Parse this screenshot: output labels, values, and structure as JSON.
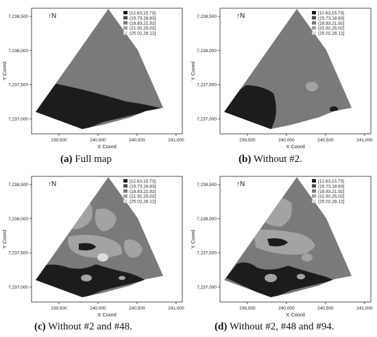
{
  "chart_data": [
    {
      "type": "heatmap",
      "panel": "a",
      "caption_letter": "(a)",
      "caption_text": "Full map",
      "north_label": "↑N",
      "xlabel": "X Coord",
      "ylabel": "Y Coord",
      "xlim": [
        239150,
        241080
      ],
      "ylim": [
        7236780,
        7238620
      ],
      "xticks": [
        239500,
        240000,
        240500,
        241000
      ],
      "xtick_labels": [
        "239,500",
        "240,000",
        "240,500",
        "241,000"
      ],
      "yticks": [
        7237000,
        7237500,
        7238000,
        7238500
      ],
      "ytick_labels": [
        "7,237,000",
        "7,237,500",
        "7,238,000",
        "7,238,500"
      ],
      "legend": [
        "[12.63,15.73]",
        "(15.73,18.83]",
        "(18.83,21.92]",
        "(21.92,25.02]",
        "(25.02,28.12]"
      ],
      "grid": false,
      "legend_position": "top-right"
    },
    {
      "type": "heatmap",
      "panel": "b",
      "caption_letter": "(b)",
      "caption_text": "Without #2.",
      "north_label": "↑N",
      "xlabel": "X Coord",
      "ylabel": "Y Coord",
      "xlim": [
        239150,
        241080
      ],
      "ylim": [
        7236780,
        7238620
      ],
      "xticks": [
        239500,
        240000,
        240500,
        241000
      ],
      "xtick_labels": [
        "239,500",
        "240,000",
        "240,500",
        "241,000"
      ],
      "yticks": [
        7237000,
        7237500,
        7238000,
        7238500
      ],
      "ytick_labels": [
        "7,237,000",
        "7,237,500",
        "7,238,000",
        "7,238,500"
      ],
      "legend": [
        "[12.63,15.73]",
        "(15.73,18.83]",
        "(18.83,21.92]",
        "(21.92,25.02]",
        "(25.02,28.12]"
      ],
      "grid": false,
      "legend_position": "top-right"
    },
    {
      "type": "heatmap",
      "panel": "c",
      "caption_letter": "(c)",
      "caption_text": "Without #2 and #48.",
      "north_label": "↑N",
      "xlabel": "X Coord",
      "ylabel": "Y Coord",
      "xlim": [
        239150,
        241080
      ],
      "ylim": [
        7236780,
        7238620
      ],
      "xticks": [
        239500,
        240000,
        240500,
        241000
      ],
      "xtick_labels": [
        "239,500",
        "240,000",
        "240,500",
        "241,000"
      ],
      "yticks": [
        7237000,
        7237500,
        7238000,
        7238500
      ],
      "ytick_labels": [
        "7,237,000",
        "7,237,500",
        "7,238,000",
        "7,238,500"
      ],
      "legend": [
        "[12.63,15.73]",
        "(15.73,18.83]",
        "(18.83,21.92]",
        "(21.92,25.02]",
        "(25.02,28.12]"
      ],
      "grid": false,
      "legend_position": "top-right"
    },
    {
      "type": "heatmap",
      "panel": "d",
      "caption_letter": "(d)",
      "caption_text": "Without #2, #48 and #94.",
      "north_label": "↑N",
      "xlabel": "X Coord",
      "ylabel": "Y Coord",
      "xlim": [
        239150,
        241080
      ],
      "ylim": [
        7236780,
        7238620
      ],
      "xticks": [
        239500,
        240000,
        240500,
        241000
      ],
      "xtick_labels": [
        "239,500",
        "240,000",
        "240,500",
        "241,000"
      ],
      "yticks": [
        7237000,
        7237500,
        7238000,
        7238500
      ],
      "ytick_labels": [
        "7,237,000",
        "7,237,500",
        "7,238,000",
        "7,238,500"
      ],
      "legend": [
        "[12.63,15.73]",
        "(15.73,18.83]",
        "(18.83,21.92]",
        "(21.92,25.02]",
        "(25.02,28.12]"
      ],
      "grid": false,
      "legend_position": "top-right"
    }
  ],
  "colors": {
    "class_1": "#1c1c1c",
    "class_2": "#4a4a4a",
    "class_3": "#7a7a7a",
    "class_4": "#a3a3a3",
    "class_5": "#dcdcdc",
    "axis": "#222222"
  }
}
